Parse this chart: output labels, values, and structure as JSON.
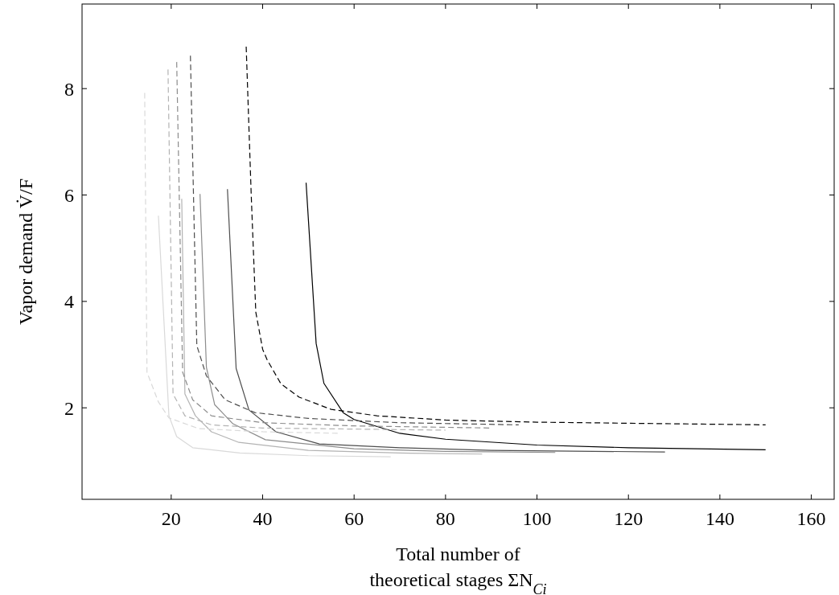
{
  "chart_data": {
    "type": "line",
    "xlabel": "Total number of\ntheoretical stages ΣN$_{Ci}$",
    "ylabel": "Vapor demand V̇/F",
    "xlim": [
      0.5,
      165
    ],
    "ylim": [
      0.28,
      9.59
    ],
    "xticks": [
      20,
      40,
      60,
      80,
      100,
      120,
      140,
      160
    ],
    "yticks": [
      2,
      4,
      6,
      8
    ],
    "grid": false,
    "marker": "none",
    "series": [
      {
        "color": "#d9d9d9",
        "line_style": "solid",
        "x": [
          17.2,
          19.5,
          21.2,
          24.7,
          35,
          50,
          68
        ],
        "values": [
          5.61,
          1.85,
          1.46,
          1.25,
          1.15,
          1.1,
          1.08
        ]
      },
      {
        "color": "#b3b3b3",
        "line_style": "solid",
        "x": [
          22.3,
          23,
          25.3,
          28.8,
          34.8,
          50,
          70,
          88
        ],
        "values": [
          5.93,
          2.26,
          1.85,
          1.55,
          1.35,
          1.2,
          1.15,
          1.13
        ]
      },
      {
        "color": "#8c8c8c",
        "line_style": "solid",
        "x": [
          26.3,
          27.7,
          29.5,
          33.5,
          40.6,
          60,
          80,
          104
        ],
        "values": [
          6.02,
          2.76,
          2.06,
          1.7,
          1.4,
          1.23,
          1.18,
          1.16
        ]
      },
      {
        "color": "#4d4d4d",
        "line_style": "solid",
        "x": [
          32.3,
          34.2,
          37,
          42.9,
          52.4,
          70,
          90,
          128
        ],
        "values": [
          6.11,
          2.74,
          1.96,
          1.55,
          1.32,
          1.25,
          1.2,
          1.17
        ]
      },
      {
        "color": "#000000",
        "line_style": "solid",
        "x": [
          49.5,
          51.7,
          53.4,
          57.6,
          60,
          70,
          80,
          100,
          120,
          150
        ],
        "values": [
          6.23,
          3.21,
          2.46,
          1.91,
          1.78,
          1.52,
          1.41,
          1.3,
          1.25,
          1.21
        ]
      },
      {
        "color": "#d9d9d9",
        "line_style": "dashed",
        "x": [
          14.2,
          14.7,
          17.2,
          19.5,
          26,
          40,
          57
        ],
        "values": [
          7.92,
          2.67,
          2.11,
          1.81,
          1.61,
          1.55,
          1.52
        ]
      },
      {
        "color": "#b3b3b3",
        "line_style": "dashed",
        "x": [
          19.3,
          20.4,
          23,
          28.8,
          40,
          60,
          80
        ],
        "values": [
          8.36,
          2.26,
          1.85,
          1.68,
          1.62,
          1.6,
          1.58
        ]
      },
      {
        "color": "#8c8c8c",
        "line_style": "dashed",
        "x": [
          21.2,
          22.5,
          24.7,
          28.8,
          40,
          60,
          90
        ],
        "values": [
          8.5,
          2.67,
          2.15,
          1.85,
          1.72,
          1.66,
          1.62
        ]
      },
      {
        "color": "#4d4d4d",
        "line_style": "dashed",
        "x": [
          24.2,
          25.6,
          27.7,
          31.8,
          38.3,
          50,
          70,
          96
        ],
        "values": [
          8.62,
          3.17,
          2.6,
          2.15,
          1.91,
          1.8,
          1.72,
          1.68
        ]
      },
      {
        "color": "#000000",
        "line_style": "dashed",
        "x": [
          36.4,
          37.5,
          38.5,
          40,
          41,
          44,
          48,
          55,
          65,
          80,
          100,
          150
        ],
        "values": [
          8.79,
          6,
          3.8,
          3.1,
          2.9,
          2.45,
          2.2,
          1.97,
          1.85,
          1.77,
          1.73,
          1.68
        ]
      }
    ]
  }
}
